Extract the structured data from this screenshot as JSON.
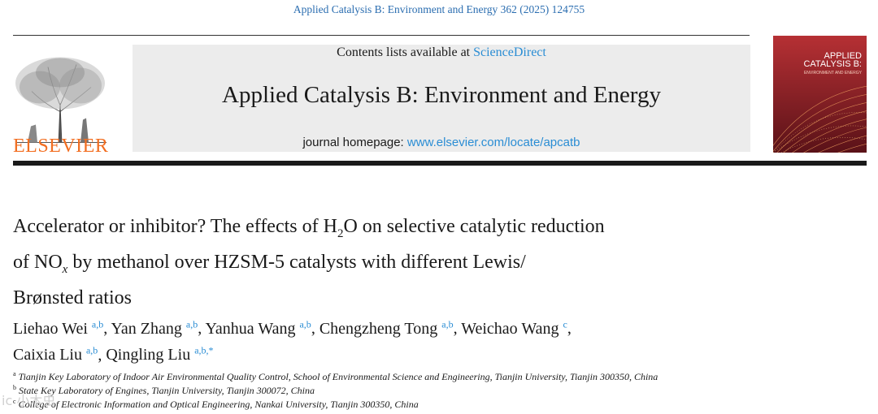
{
  "citation": "Applied Catalysis B: Environment and Energy 362 (2025) 124755",
  "publisher": {
    "name": "ELSEVIER",
    "logo_icon": "elsevier-tree-icon"
  },
  "header": {
    "contents_prefix": "Contents lists available at ",
    "contents_link": "ScienceDirect",
    "journal_title": "Applied Catalysis B: Environment and Energy",
    "homepage_prefix": "journal homepage: ",
    "homepage_url": "www.elsevier.com/locate/apcatb"
  },
  "cover": {
    "title_line1": "APPLIED",
    "title_line2": "CATALYSIS B:",
    "subtitle": "ENVIRONMENT AND ENERGY",
    "background": "#a8282a"
  },
  "article": {
    "title_line1_a": "Accelerator or inhibitor? The effects of H",
    "title_line1_sub": "2",
    "title_line1_b": "O on selective catalytic reduction",
    "title_line2_a": "of NO",
    "title_line2_sub": "x",
    "title_line2_b": " by methanol over HZSM-5 catalysts with different Lewis/",
    "title_line3": "Brønsted ratios"
  },
  "authors": [
    {
      "name": "Liehao Wei",
      "sup": "a,b"
    },
    {
      "name": "Yan Zhang",
      "sup": "a,b"
    },
    {
      "name": "Yanhua Wang",
      "sup": "a,b"
    },
    {
      "name": "Chengzheng Tong",
      "sup": "a,b"
    },
    {
      "name": "Weichao Wang",
      "sup": "c"
    },
    {
      "name": "Caixia Liu",
      "sup": "a,b"
    },
    {
      "name": "Qingling Liu",
      "sup": "a,b,*"
    }
  ],
  "affiliations": [
    {
      "mark": "a",
      "text": "Tianjin Key Laboratory of Indoor Air Environmental Quality Control, School of Environmental Science and Engineering, Tianjin University, Tianjin 300350, China"
    },
    {
      "mark": "b",
      "text": "State Key Laboratory of Engines, Tianjin University, Tianjin 300072, China"
    },
    {
      "mark": "c",
      "text": "College of Electronic Information and Optical Engineering, Nankai University, Tianjin 300350, China"
    }
  ],
  "watermark": "ic 小木虫"
}
